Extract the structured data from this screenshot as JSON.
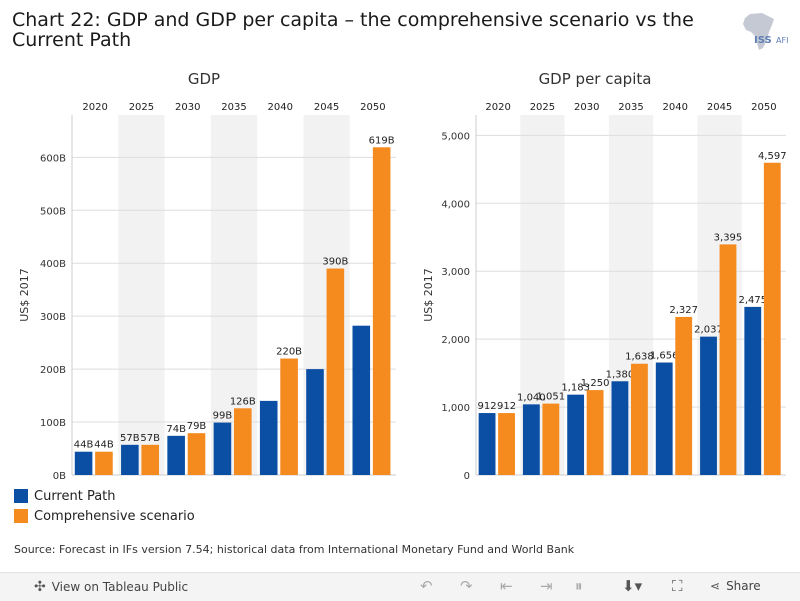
{
  "title": "Chart 22: GDP and GDP per capita – the comprehensive scenario vs the Current Path",
  "logo": {
    "text": "ISS",
    "subtext": "AFI"
  },
  "colors": {
    "current": "#0a4fa3",
    "comprehensive": "#f58a1f",
    "band": "#f2f2f2",
    "grid": "#dddddd"
  },
  "legend": {
    "current": "Current Path",
    "comprehensive": "Comprehensive scenario"
  },
  "source": "Source: Forecast in IFs version 7.54; historical data from International Monetary Fund and World Bank",
  "toolbar": {
    "view_label": "View on Tableau Public",
    "share_label": "Share"
  },
  "chart_data": [
    {
      "type": "bar",
      "title": "GDP",
      "ylabel": "US$ 2017",
      "categories": [
        "2020",
        "2025",
        "2030",
        "2035",
        "2040",
        "2045",
        "2050"
      ],
      "ylim": [
        0,
        680
      ],
      "yticks": [
        0,
        100,
        200,
        300,
        400,
        500,
        600
      ],
      "ytick_labels": [
        "0B",
        "100B",
        "200B",
        "300B",
        "400B",
        "500B",
        "600B"
      ],
      "series": [
        {
          "name": "Current Path",
          "values": [
            44,
            57,
            74,
            99,
            140,
            200,
            282
          ],
          "labels": [
            "44B",
            "57B",
            "74B",
            "99B",
            "",
            "",
            ""
          ]
        },
        {
          "name": "Comprehensive scenario",
          "values": [
            44,
            57,
            79,
            126,
            220,
            390,
            619
          ],
          "labels": [
            "44B",
            "57B",
            "79B",
            "126B",
            "220B",
            "390B",
            "619B"
          ]
        }
      ]
    },
    {
      "type": "bar",
      "title": "GDP per capita",
      "ylabel": "US$ 2017",
      "categories": [
        "2020",
        "2025",
        "2030",
        "2035",
        "2040",
        "2045",
        "2050"
      ],
      "ylim": [
        0,
        5300
      ],
      "yticks": [
        0,
        1000,
        2000,
        3000,
        4000,
        5000
      ],
      "ytick_labels": [
        "0",
        "1,000",
        "2,000",
        "3,000",
        "4,000",
        "5,000"
      ],
      "series": [
        {
          "name": "Current Path",
          "values": [
            912,
            1040,
            1183,
            1380,
            1656,
            2037,
            2475
          ],
          "labels": [
            "912",
            "1,040",
            "1,183",
            "1,380",
            "1,656",
            "2,037",
            "2,475"
          ]
        },
        {
          "name": "Comprehensive scenario",
          "values": [
            912,
            1051,
            1250,
            1638,
            2327,
            3395,
            4597
          ],
          "labels": [
            "912",
            "1,051",
            "1,250",
            "1,638",
            "2,327",
            "3,395",
            "4,597"
          ]
        }
      ]
    }
  ]
}
